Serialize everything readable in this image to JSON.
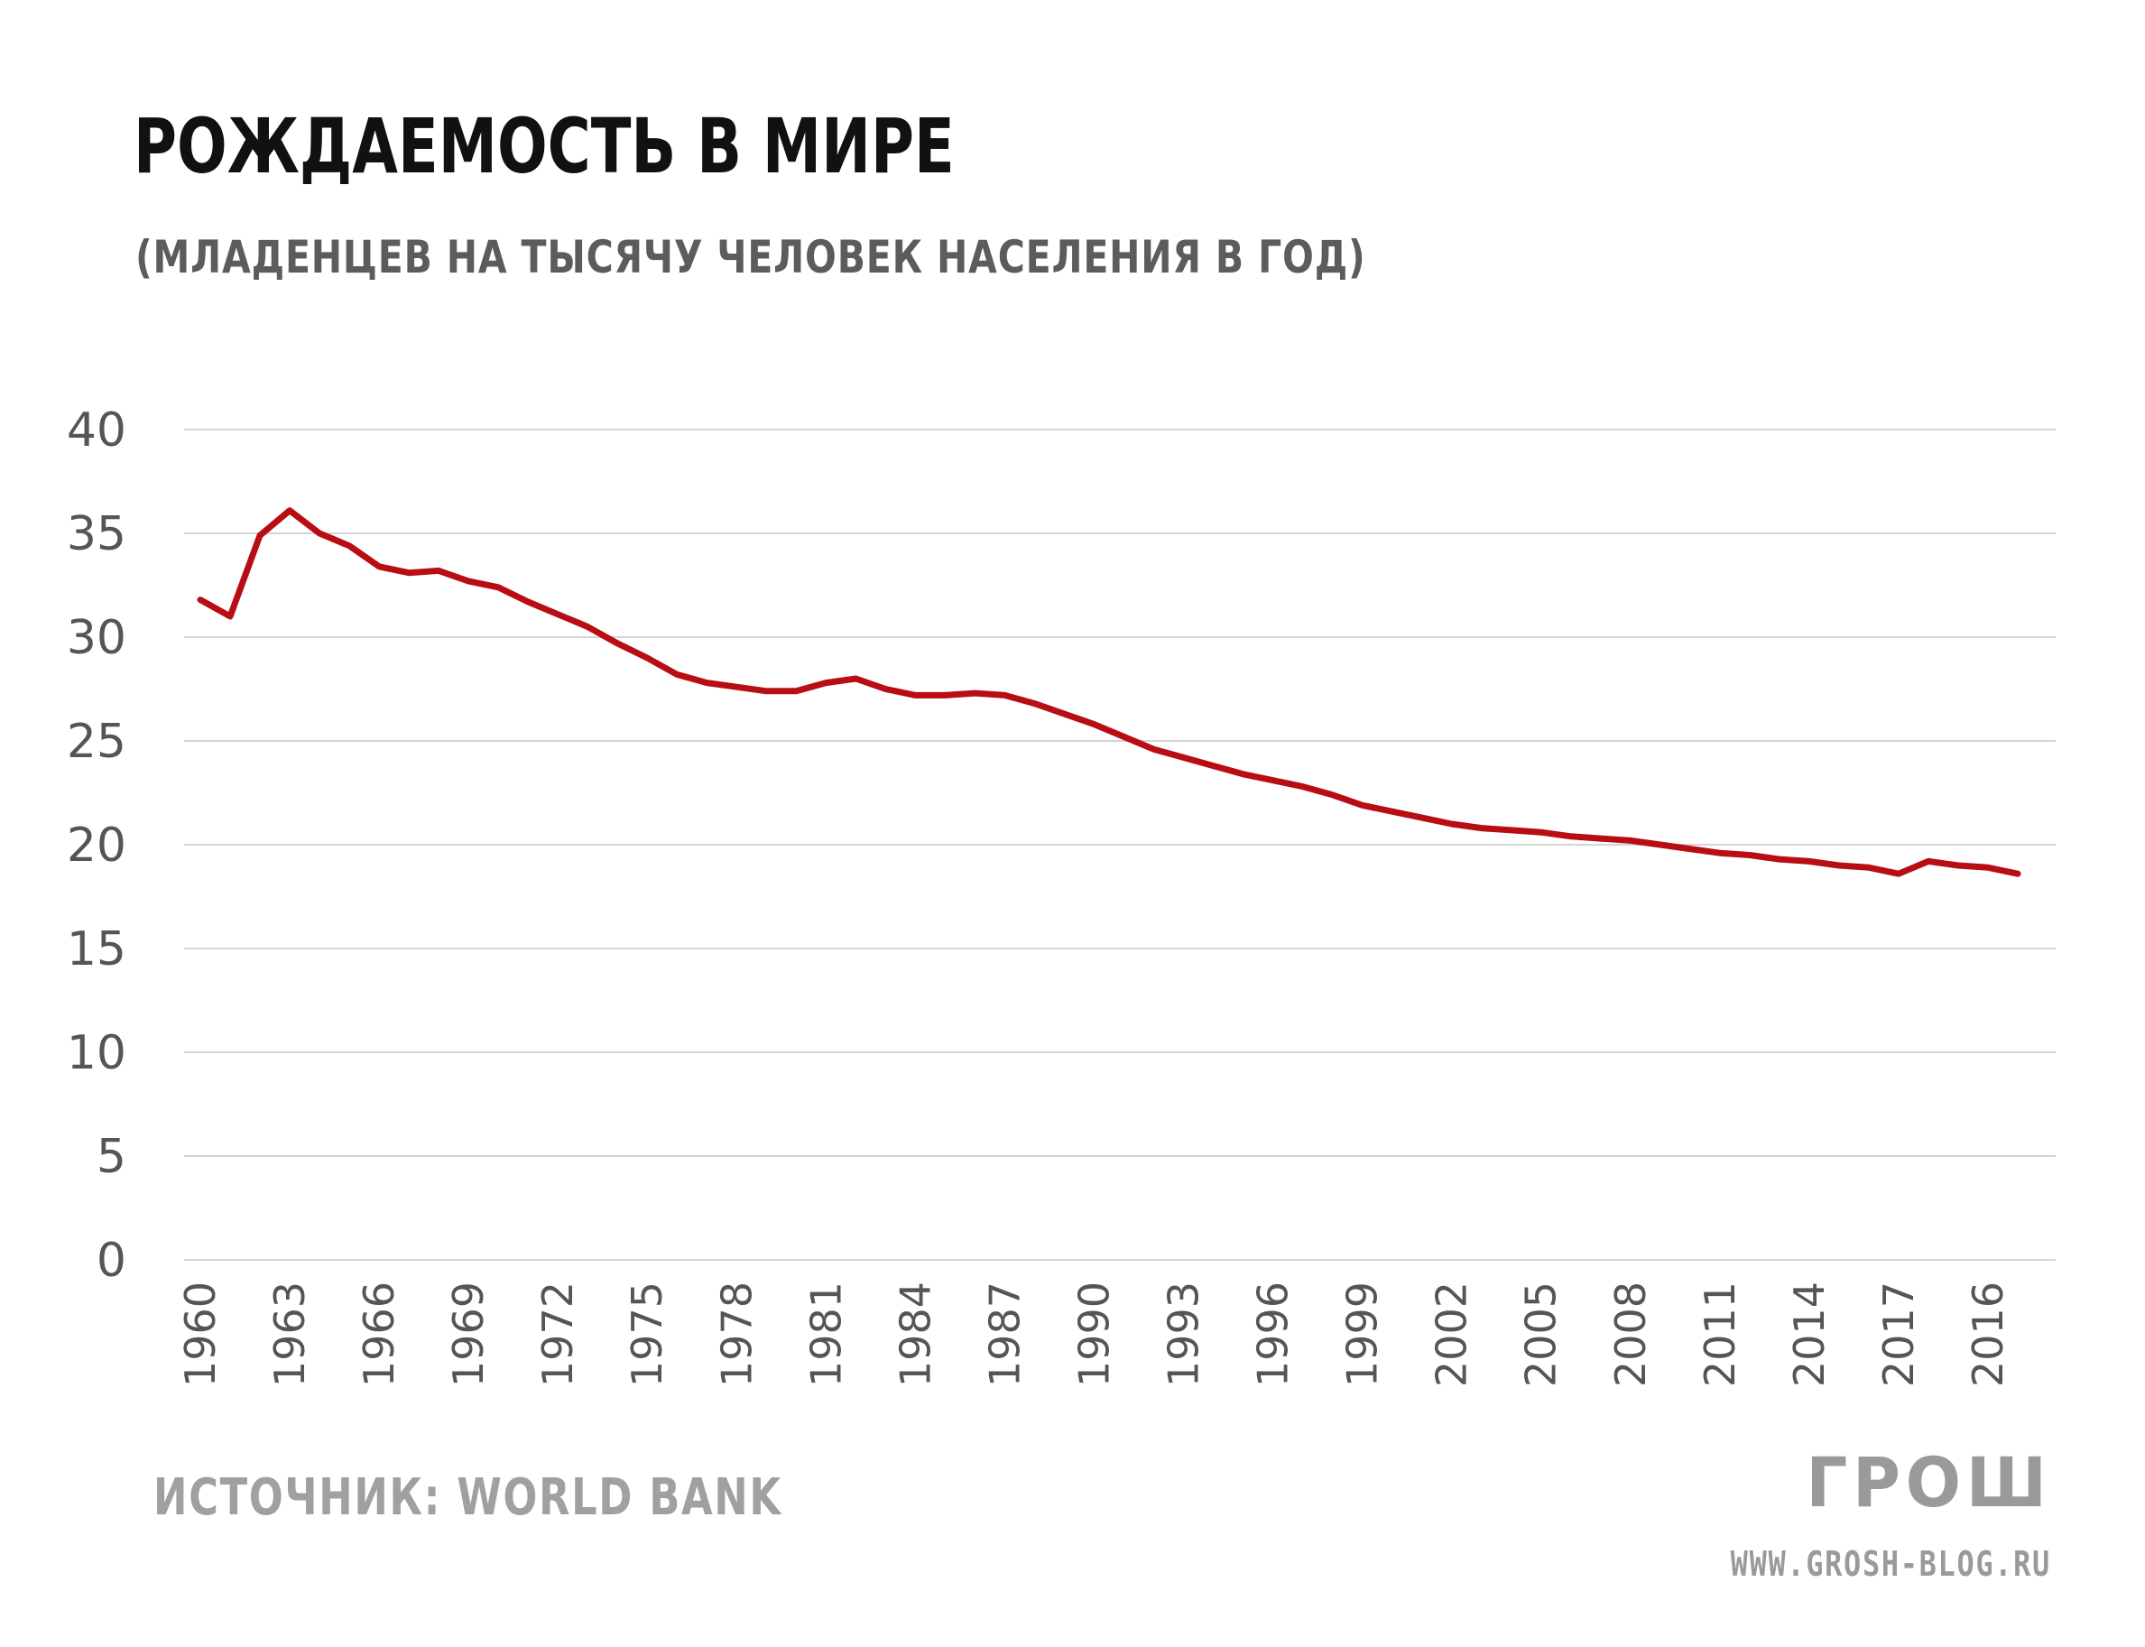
{
  "header": {
    "title": "РОЖДАЕМОСТЬ В МИРЕ",
    "subtitle": "(МЛАДЕНЦЕВ НА ТЫСЯЧУ ЧЕЛОВЕК НАСЕЛЕНИЯ В ГОД)"
  },
  "footer": {
    "source": "ИСТОЧНИК: WORLD BANK",
    "logo": "ГРОШ",
    "site": "WWW.GROSH-BLOG.RU"
  },
  "chart_data": {
    "type": "line",
    "title": "РОЖДАЕМОСТЬ В МИРЕ",
    "subtitle": "(МЛАДЕНЦЕВ НА ТЫСЯЧУ ЧЕЛОВЕК НАСЕЛЕНИЯ В ГОД)",
    "xlabel": "",
    "ylabel": "",
    "ylim": [
      0,
      40
    ],
    "yticks": [
      0,
      5,
      10,
      15,
      20,
      25,
      30,
      35,
      40
    ],
    "grid": true,
    "legend": "none",
    "line_color": "#b80d12",
    "grid_color": "#d4d4d4",
    "categories": [
      "1960",
      "1961",
      "1962",
      "1963",
      "1964",
      "1965",
      "1966",
      "1967",
      "1968",
      "1969",
      "1970",
      "1971",
      "1972",
      "1973",
      "1974",
      "1975",
      "1976",
      "1977",
      "1978",
      "1979",
      "1980",
      "1981",
      "1982",
      "1983",
      "1984",
      "1985",
      "1986",
      "1987",
      "1988",
      "1989",
      "1990",
      "1991",
      "1992",
      "1993",
      "1994",
      "1995",
      "1996",
      "1997",
      "1998",
      "1999",
      "2000",
      "2001",
      "2002",
      "2003",
      "2004",
      "2005",
      "2006",
      "2007",
      "2008",
      "2009",
      "2010",
      "2011",
      "2012",
      "2013",
      "2014",
      "2015",
      "2016",
      "2017",
      "2018",
      "2019",
      "2016",
      "2017"
    ],
    "tick_labels": [
      "1960",
      "",
      "",
      "1963",
      "",
      "",
      "1966",
      "",
      "",
      "1969",
      "",
      "",
      "1972",
      "",
      "",
      "1975",
      "",
      "",
      "1978",
      "",
      "",
      "1981",
      "",
      "",
      "1984",
      "",
      "",
      "1987",
      "",
      "",
      "1990",
      "",
      "",
      "1993",
      "",
      "",
      "1996",
      "",
      "",
      "1999",
      "",
      "",
      "2002",
      "",
      "",
      "2005",
      "",
      "",
      "2008",
      "",
      "",
      "2011",
      "",
      "",
      "2014",
      "",
      "",
      "2017",
      "",
      "",
      "2016",
      ""
    ],
    "series": [
      {
        "values": [
          31.8,
          31.0,
          34.9,
          36.1,
          35.0,
          34.4,
          33.4,
          33.1,
          33.2,
          32.7,
          32.4,
          31.7,
          31.1,
          30.5,
          29.7,
          29.0,
          28.2,
          27.8,
          27.6,
          27.4,
          27.4,
          27.8,
          28.0,
          27.5,
          27.2,
          27.2,
          27.3,
          27.2,
          26.8,
          26.3,
          25.8,
          25.2,
          24.6,
          24.2,
          23.8,
          23.4,
          23.1,
          22.8,
          22.4,
          21.9,
          21.6,
          21.3,
          21.0,
          20.8,
          20.7,
          20.6,
          20.4,
          20.3,
          20.2,
          20.0,
          19.8,
          19.6,
          19.5,
          19.3,
          19.2,
          19.0,
          18.9,
          18.6,
          19.2,
          19.0,
          18.9,
          18.6
        ]
      }
    ]
  }
}
